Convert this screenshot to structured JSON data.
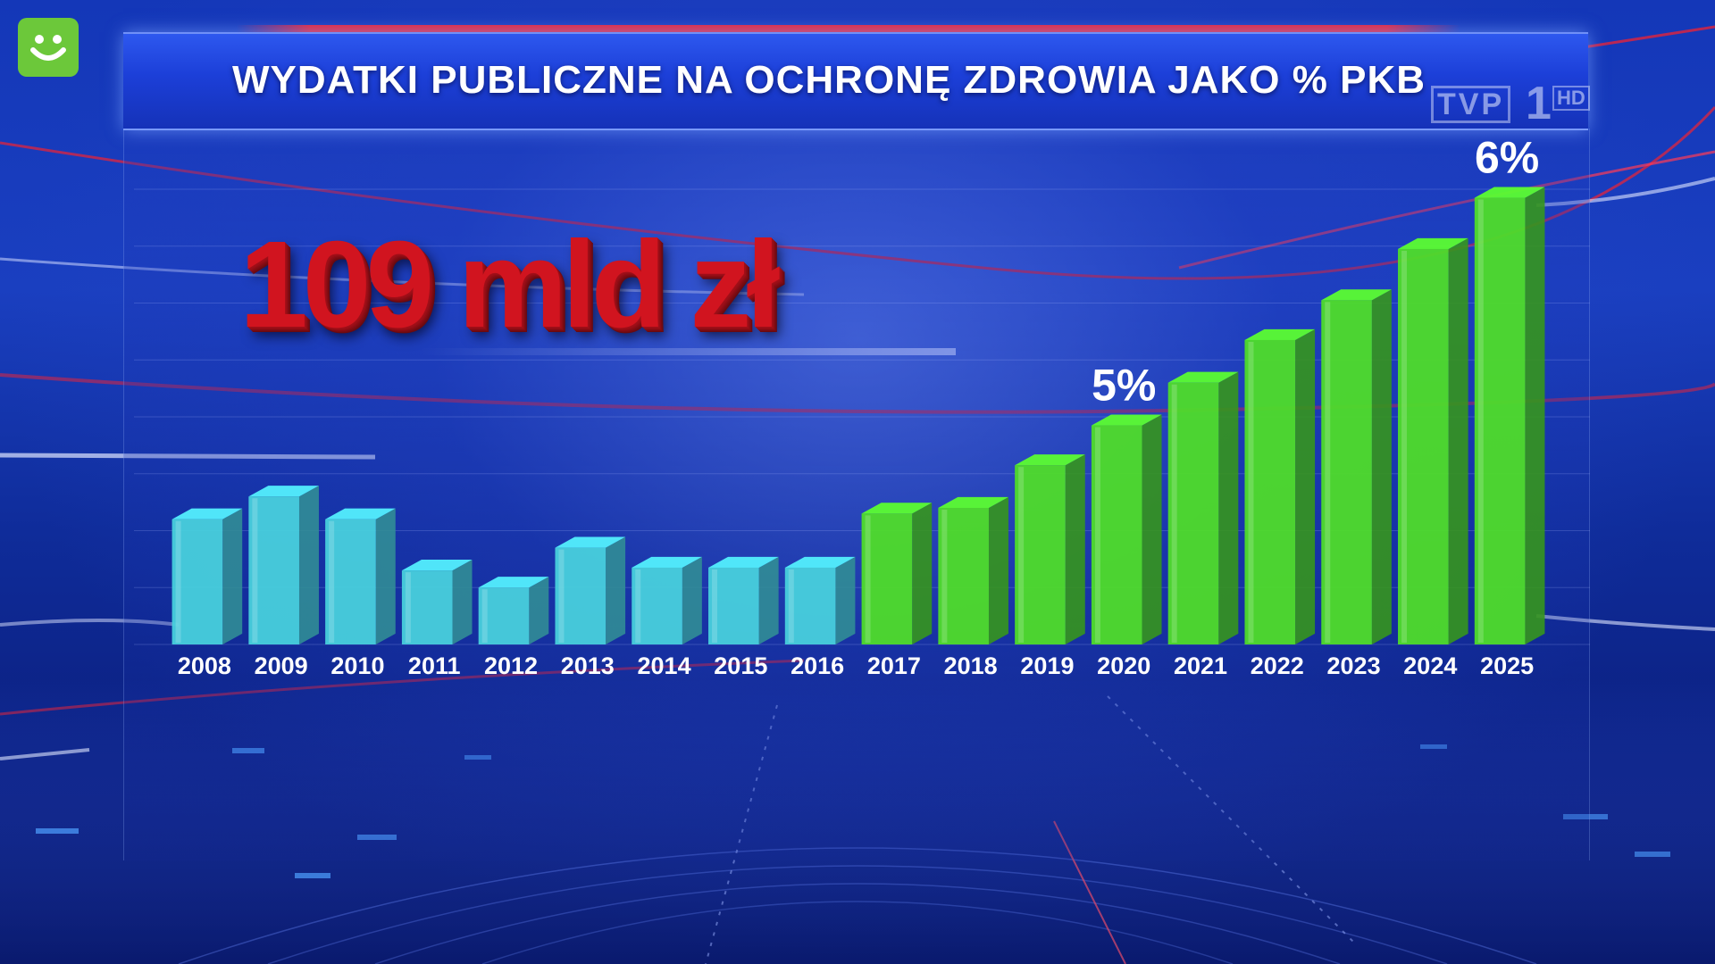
{
  "header": {
    "title": "WYDATKI PUBLICZNE NA OCHRONĘ ZDROWIA JAKO % PKB"
  },
  "headline": "109 mld zł",
  "channel_logo": {
    "tvp": "TVP",
    "number": "1",
    "hd": "HD"
  },
  "colors": {
    "past_bars": "#48d0dc",
    "future_bars": "#4fdc2a",
    "headline": "#d1141f",
    "title_bar": "#1c3fd8",
    "corner_logo": "#6cc83a"
  },
  "chart_data": {
    "type": "bar",
    "title": "WYDATKI PUBLICZNE NA OCHRONĘ ZDROWIA JAKO % PKB",
    "xlabel": "",
    "ylabel": "",
    "categories": [
      "2008",
      "2009",
      "2010",
      "2011",
      "2012",
      "2013",
      "2014",
      "2015",
      "2016",
      "2017",
      "2018",
      "2019",
      "2020",
      "2021",
      "2022",
      "2023",
      "2024",
      "2025"
    ],
    "values": [
      4.44,
      4.52,
      4.44,
      4.26,
      4.2,
      4.34,
      4.27,
      4.27,
      4.27,
      4.46,
      4.48,
      4.63,
      4.77,
      4.92,
      5.07,
      5.21,
      5.39,
      5.57
    ],
    "groups": [
      {
        "range": [
          "2008",
          "2016"
        ],
        "color": "#48d0dc"
      },
      {
        "range": [
          "2017",
          "2025"
        ],
        "color": "#4fdc2a"
      }
    ],
    "annotations": [
      {
        "category": "2020",
        "text": "5%"
      },
      {
        "category": "2025",
        "text": "6%"
      }
    ],
    "ylim": [
      4.0,
      5.6
    ],
    "grid": true
  }
}
